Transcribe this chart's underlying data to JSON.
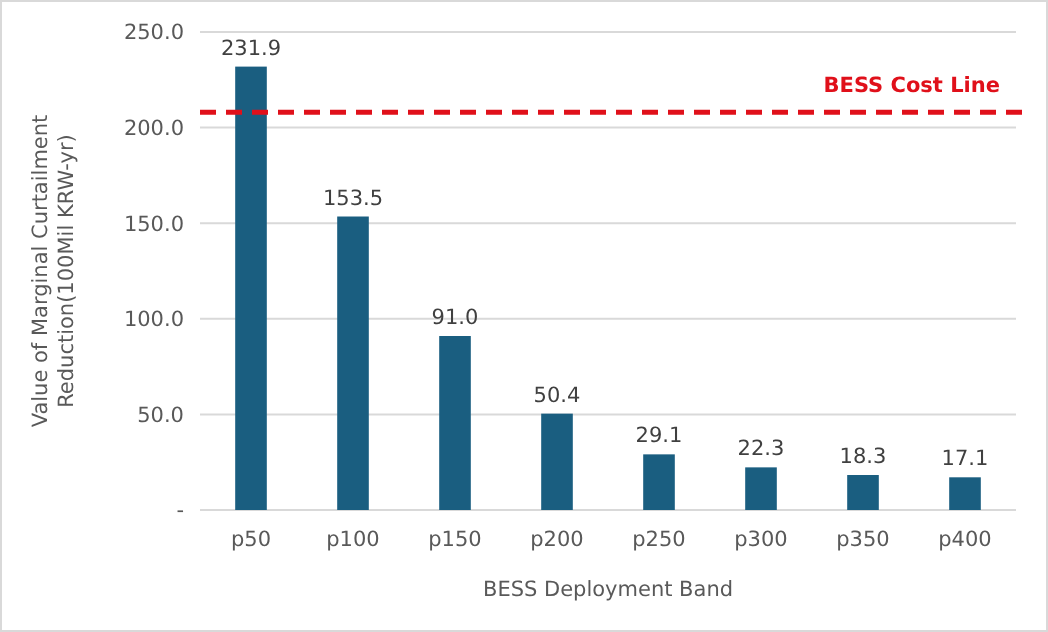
{
  "chart_data": {
    "type": "bar",
    "xlabel": "BESS Deployment Band",
    "ylabel": "Value of Marginal Curtailment\nReduction(100Mil KRW-yr)",
    "categories": [
      "p50",
      "p100",
      "p150",
      "p200",
      "p250",
      "p300",
      "p350",
      "p400"
    ],
    "values": [
      231.9,
      153.5,
      91.0,
      50.4,
      29.1,
      22.3,
      18.3,
      17.1
    ],
    "value_labels": [
      "231.9",
      "153.5",
      "91.0",
      "50.4",
      "29.1",
      "22.3",
      "18.3",
      "17.1"
    ],
    "color": "#1a5e80",
    "ylim": [
      0,
      250
    ],
    "yticks": [
      {
        "value": 0,
        "label": "-"
      },
      {
        "value": 50,
        "label": "50.0"
      },
      {
        "value": 100,
        "label": "100.0"
      },
      {
        "value": 150,
        "label": "150.0"
      },
      {
        "value": 200,
        "label": "200.0"
      },
      {
        "value": 250,
        "label": "250.0"
      }
    ],
    "grid": "y",
    "ref_lines": [
      {
        "axis": "y",
        "value": 208,
        "label": "BESS Cost Line",
        "color": "#e0101a",
        "line_style": "dashed"
      }
    ]
  }
}
